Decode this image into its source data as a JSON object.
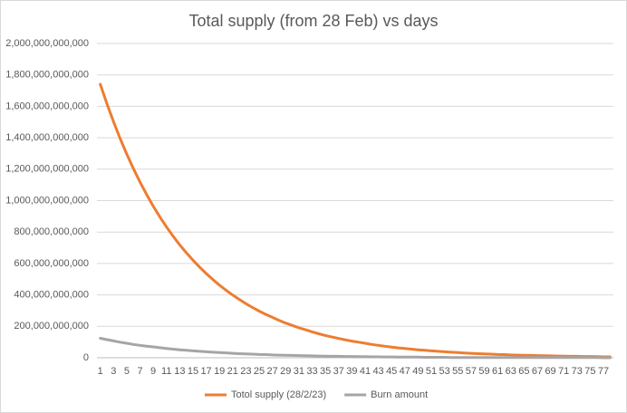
{
  "chart_data": {
    "type": "line",
    "title": "Total supply (from 28 Feb) vs days",
    "categories": [
      1,
      null,
      3,
      null,
      5,
      null,
      7,
      null,
      9,
      null,
      11,
      null,
      13,
      null,
      15,
      null,
      17,
      null,
      19,
      null,
      21,
      null,
      23,
      null,
      25,
      null,
      27,
      null,
      29,
      null,
      31,
      null,
      33,
      null,
      35,
      null,
      37,
      null,
      39,
      null,
      41,
      null,
      43,
      null,
      45,
      null,
      47,
      null,
      49,
      null,
      51,
      null,
      53,
      null,
      55,
      null,
      57,
      null,
      59,
      null,
      61,
      null,
      63,
      null,
      65,
      null,
      67,
      null,
      69,
      null,
      71,
      null,
      73,
      null,
      75,
      null,
      77,
      null
    ],
    "series": [
      {
        "name": "Totol supply (28/2/23)",
        "color": "#ed7d31",
        "values": [
          1740000000000.0,
          1617000000000.0,
          1502000000000.0,
          1395000000000.0,
          1296000000000.0,
          1204000000000.0,
          1119000000000.0,
          1039000000000.0,
          965000000000.0,
          897000000000.0,
          833000000000.0,
          774000000000.0,
          719000000000.0,
          668000000000.0,
          621000000000.0,
          577000000000.0,
          536000000000.0,
          498000000000.0,
          462000000000.0,
          430000000000.0,
          399000000000.0,
          371000000000.0,
          344000000000.0,
          320000000000.0,
          297000000000.0,
          276000000000.0,
          257000000000.0,
          238000000000.0,
          221000000000.0,
          206000000000.0,
          191000000000.0,
          178000000000.0,
          165000000000.0,
          153000000000.0,
          142000000000.0,
          132000000000.0,
          123000000000.0,
          114000000000.0,
          106000000000.0,
          99000000000.0,
          92000000000.0,
          85000000000.0,
          79000000000.0,
          73000000000.0,
          68000000000.0,
          63000000000.0,
          59000000000.0,
          55000000000.0,
          51000000000.0,
          47000000000.0,
          44000000000.0,
          41000000000.0,
          38000000000.0,
          35000000000.0,
          33000000000.0,
          30000000000.0,
          28000000000.0,
          26000000000.0,
          24000000000.0,
          23000000000.0,
          21000000000.0,
          20000000000.0,
          18000000000.0,
          17000000000.0,
          16000000000.0,
          15000000000.0,
          14000000000.0,
          13000000000.0,
          12000000000.0,
          11000000000.0,
          10000000000.0,
          9000000000.0,
          9000000000.0,
          8000000000.0,
          8000000000.0,
          7000000000.0,
          6000000000.0,
          6000000000.0
        ]
      },
      {
        "name": "Burn amount",
        "color": "#a5a5a5",
        "values": [
          124000000000.0,
          115000000000.0,
          107000000000.0,
          99000000000.0,
          92000000000.0,
          85000000000.0,
          79000000000.0,
          74000000000.0,
          69000000000.0,
          64000000000.0,
          59000000000.0,
          55000000000.0,
          51000000000.0,
          47000000000.0,
          44000000000.0,
          41000000000.0,
          38000000000.0,
          35000000000.0,
          33000000000.0,
          31000000000.0,
          28000000000.0,
          26000000000.0,
          24000000000.0,
          23000000000.0,
          21000000000.0,
          20000000000.0,
          18000000000.0,
          17000000000.0,
          16000000000.0,
          15000000000.0,
          14000000000.0,
          13000000000.0,
          12000000000.0,
          11000000000.0,
          10000000000.0,
          9000000000.0,
          9000000000.0,
          8000000000.0,
          8000000000.0,
          7000000000.0,
          7000000000.0,
          6000000000.0,
          6000000000.0,
          5000000000.0,
          5000000000.0,
          4000000000.0,
          4000000000.0,
          4000000000.0,
          4000000000.0,
          3000000000.0,
          3000000000.0,
          3000000000.0,
          3000000000.0,
          2000000000.0,
          2000000000.0,
          2000000000.0,
          2000000000.0,
          2000000000.0,
          2000000000.0,
          2000000000.0,
          1000000000.0,
          1000000000.0,
          1000000000.0,
          1000000000.0,
          1000000000.0,
          1000000000.0,
          1000000000.0,
          1000000000.0,
          1000000000.0,
          1000000000.0,
          1000000000.0,
          1000000000.0,
          1000000000.0,
          1000000000.0,
          1000000000.0,
          1000000000.0,
          0,
          0
        ]
      }
    ],
    "ylim": [
      0,
      2000000000000
    ],
    "yticks": [
      0,
      {
        "value": 200000000000,
        "label": "200,000,000,000"
      },
      {
        "value": 400000000000,
        "label": "400,000,000,000"
      },
      {
        "value": 600000000000,
        "label": "600,000,000,000"
      },
      {
        "value": 800000000000,
        "label": "800,000,000,000"
      },
      {
        "value": 1000000000000,
        "label": "1,000,000,000,000"
      },
      {
        "value": 1200000000000,
        "label": "1,200,000,000,000"
      },
      {
        "value": 1400000000000,
        "label": "1,400,000,000,000"
      },
      {
        "value": 1600000000000,
        "label": "1,600,000,000,000"
      },
      {
        "value": 1800000000000,
        "label": "1,800,000,000,000"
      },
      {
        "value": 2000000000000,
        "label": "2,000,000,000,000"
      }
    ],
    "grid": true,
    "legend": "bottom"
  }
}
